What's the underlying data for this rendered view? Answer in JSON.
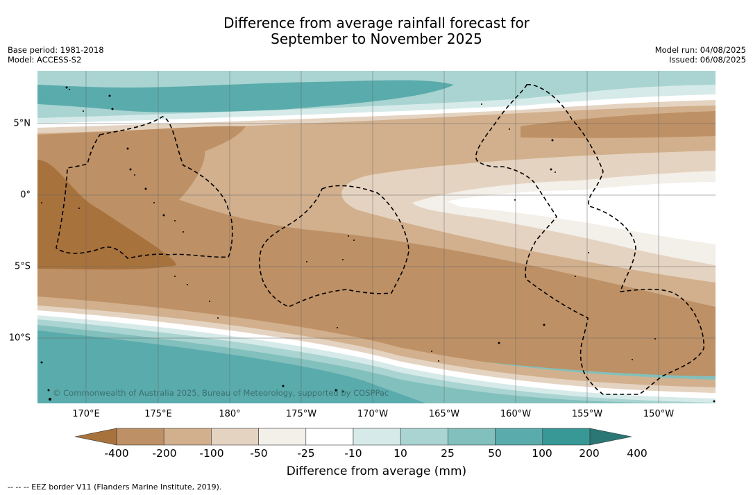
{
  "title": {
    "line1": "Difference from average rainfall forecast for",
    "line2": "September to November 2025"
  },
  "meta_left": {
    "base_period": "Base period: 1981-2018",
    "model": "Model: ACCESS-S2"
  },
  "meta_right": {
    "model_run": "Model run: 04/08/2025",
    "issued": "Issued: 06/08/2025"
  },
  "map": {
    "lon_ticks": [
      "170°E",
      "175°E",
      "180°",
      "175°W",
      "170°W",
      "165°W",
      "160°W",
      "155°W",
      "150°W"
    ],
    "lat_ticks": [
      "5°N",
      "0°",
      "5°S",
      "10°S"
    ],
    "copyright": "© Commonwealth of Australia 2025, Bureau of Meteorology, supported by COSPPac",
    "grid": true,
    "eez_border": "dashed"
  },
  "colorbar": {
    "labels": [
      "-400",
      "-200",
      "-100",
      "-50",
      "-25",
      "-10",
      "10",
      "25",
      "50",
      "100",
      "200",
      "400"
    ],
    "colors": [
      "#a8723c",
      "#be9065",
      "#d2b08d",
      "#e5d3c1",
      "#f3efe9",
      "#ffffff",
      "#d6ebe9",
      "#a9d4d1",
      "#82c0bd",
      "#5aabac",
      "#379896",
      "#2a7775"
    ],
    "title": "Difference from average (mm)"
  },
  "footnote": "--  --  -- EEZ border V11 (Flanders Marine Institute, 2019)."
}
